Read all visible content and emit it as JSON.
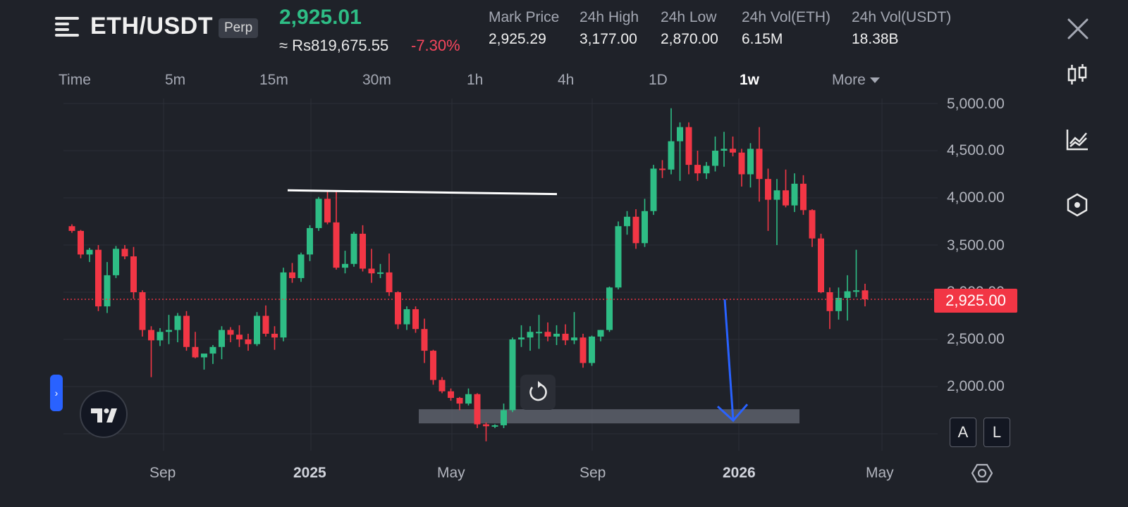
{
  "header": {
    "pair": "ETH/USDT",
    "badge": "Perp",
    "last_price": "2,925.01",
    "approx_local": "≈ Rs819,675.55",
    "change_pct": "-7.30%",
    "stats": [
      {
        "label": "Mark Price",
        "value": "2,925.29"
      },
      {
        "label": "24h High",
        "value": "3,177.00"
      },
      {
        "label": "24h Low",
        "value": "2,870.00"
      },
      {
        "label": "24h Vol(ETH)",
        "value": "6.15M"
      },
      {
        "label": "24h Vol(USDT)",
        "value": "18.38B"
      }
    ]
  },
  "timeframes": [
    "Time",
    "5m",
    "15m",
    "30m",
    "1h",
    "4h",
    "1D",
    "1w",
    "More"
  ],
  "active_timeframe": "1w",
  "side_toolbar": [
    "candlestick-icon",
    "indicators-icon",
    "templates-icon"
  ],
  "chart": {
    "y_ticks": [
      "5,000.00",
      "4,500.00",
      "4,000.00",
      "3,500.00",
      "3,000.00",
      "2,500.00",
      "2,000.00"
    ],
    "x_ticks": [
      "Sep",
      "2025",
      "May",
      "Sep",
      "2026",
      "May"
    ],
    "current_price_label": "2,925.00",
    "scale_buttons": [
      "A",
      "L"
    ],
    "colors": {
      "up": "#2ebd85",
      "down": "#f23645",
      "background": "#1f2229",
      "grid": "#2b2f38"
    }
  },
  "chart_data": {
    "type": "candlestick",
    "x_ticks": [
      "Sep",
      "2025",
      "May",
      "Sep",
      "2026",
      "May"
    ],
    "y_ticks": [
      5000,
      4500,
      4000,
      3500,
      3000,
      2500,
      2000
    ],
    "ylim": [
      1600,
      5000
    ],
    "current_price": 2925,
    "candles": [
      [
        3700,
        3720,
        3630,
        3650
      ],
      [
        3650,
        3660,
        3360,
        3400
      ],
      [
        3400,
        3470,
        3320,
        3450
      ],
      [
        3450,
        3500,
        2800,
        2850
      ],
      [
        2850,
        3320,
        2780,
        3180
      ],
      [
        3180,
        3490,
        3150,
        3460
      ],
      [
        3460,
        3500,
        3350,
        3380
      ],
      [
        3380,
        3480,
        2930,
        3000
      ],
      [
        3000,
        3020,
        2530,
        2600
      ],
      [
        2600,
        2640,
        2100,
        2490
      ],
      [
        2490,
        2620,
        2430,
        2580
      ],
      [
        2580,
        2760,
        2450,
        2600
      ],
      [
        2600,
        2780,
        2470,
        2750
      ],
      [
        2750,
        2800,
        2380,
        2420
      ],
      [
        2420,
        2580,
        2300,
        2310
      ],
      [
        2310,
        2330,
        2180,
        2350
      ],
      [
        2350,
        2440,
        2240,
        2420
      ],
      [
        2420,
        2640,
        2290,
        2600
      ],
      [
        2600,
        2630,
        2470,
        2550
      ],
      [
        2550,
        2650,
        2420,
        2500
      ],
      [
        2500,
        2560,
        2380,
        2450
      ],
      [
        2450,
        2790,
        2430,
        2750
      ],
      [
        2750,
        2860,
        2530,
        2560
      ],
      [
        2560,
        2640,
        2390,
        2520
      ],
      [
        2520,
        3260,
        2480,
        3210
      ],
      [
        3210,
        3310,
        3100,
        3150
      ],
      [
        3150,
        3420,
        3110,
        3400
      ],
      [
        3400,
        3710,
        3330,
        3680
      ],
      [
        3680,
        4010,
        3650,
        3990
      ],
      [
        3990,
        4070,
        3720,
        3740
      ],
      [
        3740,
        4080,
        3240,
        3260
      ],
      [
        3260,
        3440,
        3200,
        3300
      ],
      [
        3300,
        3640,
        3270,
        3620
      ],
      [
        3620,
        3710,
        3220,
        3250
      ],
      [
        3250,
        3460,
        3100,
        3200
      ],
      [
        3200,
        3300,
        3150,
        3210
      ],
      [
        3210,
        3410,
        2960,
        3000
      ],
      [
        3000,
        3010,
        2610,
        2660
      ],
      [
        2660,
        2850,
        2600,
        2820
      ],
      [
        2820,
        2850,
        2570,
        2610
      ],
      [
        2610,
        2720,
        2250,
        2380
      ],
      [
        2380,
        2390,
        2020,
        2070
      ],
      [
        2070,
        2100,
        1930,
        1950
      ],
      [
        1950,
        1980,
        1850,
        1880
      ],
      [
        1880,
        1890,
        1750,
        1820
      ],
      [
        1820,
        1980,
        1800,
        1920
      ],
      [
        1920,
        1930,
        1560,
        1600
      ],
      [
        1600,
        1620,
        1420,
        1580
      ],
      [
        1580,
        1600,
        1560,
        1590
      ],
      [
        1590,
        1820,
        1560,
        1750
      ],
      [
        1750,
        2520,
        1730,
        2500
      ],
      [
        2500,
        2650,
        2420,
        2520
      ],
      [
        2520,
        2640,
        2380,
        2580
      ],
      [
        2580,
        2760,
        2400,
        2580
      ],
      [
        2580,
        2680,
        2480,
        2530
      ],
      [
        2530,
        2650,
        2440,
        2560
      ],
      [
        2560,
        2660,
        2440,
        2490
      ],
      [
        2490,
        2790,
        2450,
        2520
      ],
      [
        2520,
        2560,
        2200,
        2250
      ],
      [
        2250,
        2540,
        2220,
        2530
      ],
      [
        2530,
        2600,
        2480,
        2600
      ],
      [
        2600,
        3060,
        2580,
        3050
      ],
      [
        3050,
        3750,
        3030,
        3700
      ],
      [
        3700,
        3860,
        3610,
        3800
      ],
      [
        3800,
        3880,
        3460,
        3520
      ],
      [
        3520,
        3990,
        3480,
        3860
      ],
      [
        3860,
        4350,
        3820,
        4310
      ],
      [
        4310,
        4400,
        4210,
        4300
      ],
      [
        4300,
        4950,
        4250,
        4600
      ],
      [
        4600,
        4800,
        4180,
        4750
      ],
      [
        4750,
        4800,
        4250,
        4350
      ],
      [
        4350,
        4500,
        4180,
        4260
      ],
      [
        4260,
        4380,
        4200,
        4340
      ],
      [
        4340,
        4650,
        4280,
        4500
      ],
      [
        4500,
        4700,
        4330,
        4520
      ],
      [
        4520,
        4650,
        4440,
        4480
      ],
      [
        4480,
        4520,
        4120,
        4250
      ],
      [
        4250,
        4580,
        4110,
        4520
      ],
      [
        4520,
        4750,
        3960,
        4200
      ],
      [
        4200,
        4310,
        3650,
        3980
      ],
      [
        3980,
        4200,
        3500,
        4080
      ],
      [
        4080,
        4300,
        3900,
        3920
      ],
      [
        3920,
        4260,
        3850,
        4150
      ],
      [
        4150,
        4240,
        3820,
        3870
      ],
      [
        3870,
        3880,
        3480,
        3570
      ],
      [
        3570,
        3620,
        2990,
        3000
      ],
      [
        3000,
        3050,
        2610,
        2800
      ],
      [
        2800,
        3050,
        2710,
        2940
      ],
      [
        2940,
        3180,
        2700,
        3010
      ],
      [
        3010,
        3450,
        2950,
        3020
      ],
      [
        3020,
        3090,
        2850,
        2925
      ]
    ],
    "annotations": [
      {
        "type": "horizontal-line",
        "price_from": 4080,
        "price_to": 4040,
        "color": "#ffffff"
      },
      {
        "type": "arrow",
        "from_price": 2925,
        "to_price": 1700,
        "color": "#2962ff"
      },
      {
        "type": "zone",
        "price_low": 1610,
        "price_high": 1760,
        "color": "#5d606b"
      }
    ]
  }
}
